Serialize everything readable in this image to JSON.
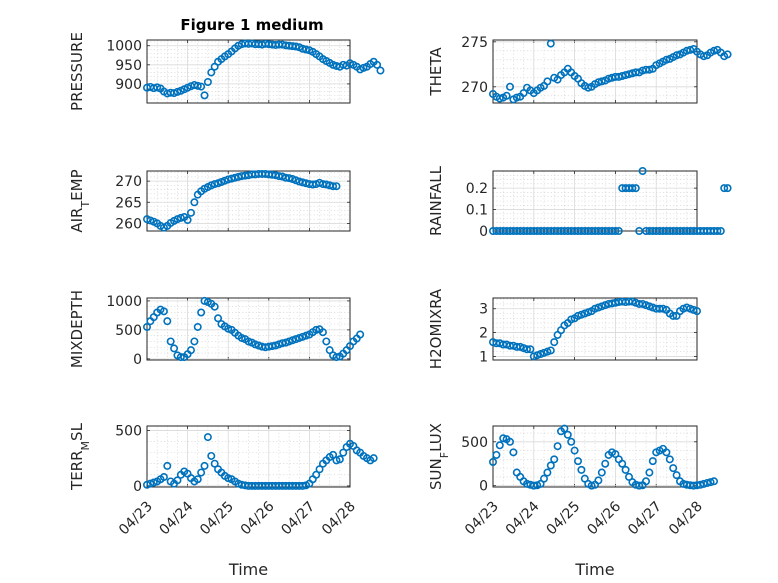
{
  "figure": {
    "title": "Figure 1 medium",
    "marker_color": "#0072BD"
  },
  "chart_data": [
    {
      "type": "scatter",
      "ylabel": "PRESSURE",
      "xlabel": "",
      "xlim": [
        "04/23",
        "04/28"
      ],
      "ylim": [
        850,
        1015
      ],
      "yticks": [
        900,
        950,
        1000
      ],
      "xticks": [
        "04/23",
        "04/24",
        "04/25",
        "04/26",
        "04/27",
        "04/28"
      ],
      "x_start": "04/23 00:00",
      "x_step_hours": 2,
      "values": [
        890,
        892,
        889,
        891,
        888,
        880,
        875,
        877,
        876,
        879,
        882,
        886,
        890,
        894,
        897,
        895,
        893,
        870,
        905,
        930,
        945,
        958,
        965,
        972,
        978,
        985,
        993,
        1000,
        1004,
        1006,
        1005,
        1006,
        1004,
        1004,
        1003,
        1005,
        1004,
        1003,
        1002,
        1003,
        1003,
        1001,
        1000,
        999,
        998,
        996,
        992,
        990,
        988,
        984,
        978,
        972,
        965,
        960,
        955,
        950,
        947,
        945,
        950,
        948,
        954,
        950,
        945,
        938,
        942,
        945,
        952,
        958,
        950,
        935
      ]
    },
    {
      "type": "scatter",
      "ylabel": "THETA",
      "xlabel": "",
      "xlim": [
        "04/23",
        "04/28"
      ],
      "ylim": [
        268.2,
        275.2
      ],
      "yticks": [
        270,
        275
      ],
      "xticks": [
        "04/23",
        "04/24",
        "04/25",
        "04/26",
        "04/27",
        "04/28"
      ],
      "x_start": "04/23 00:00",
      "x_step_hours": 2,
      "values": [
        269.2,
        268.9,
        268.7,
        268.8,
        269.0,
        270.0,
        268.6,
        268.8,
        268.9,
        269.3,
        269.9,
        269.6,
        269.3,
        269.6,
        269.9,
        270.1,
        270.6,
        274.8,
        271.0,
        270.8,
        271.3,
        271.6,
        272.0,
        271.6,
        271.2,
        270.9,
        270.4,
        270.1,
        269.9,
        270.0,
        270.3,
        270.5,
        270.6,
        270.7,
        270.9,
        271.0,
        271.1,
        271.1,
        271.2,
        271.3,
        271.4,
        271.5,
        271.6,
        271.6,
        271.8,
        271.9,
        271.9,
        272.0,
        272.4,
        272.6,
        272.8,
        273.0,
        273.1,
        273.3,
        273.5,
        273.6,
        273.8,
        274.0,
        274.1,
        274.2,
        273.9,
        273.6,
        273.4,
        273.5,
        273.8,
        274.0,
        274.1,
        273.8,
        273.4,
        273.6
      ]
    },
    {
      "type": "scatter",
      "ylabel": "AIR_TEMP",
      "xlabel": "",
      "xlim": [
        "04/23",
        "04/28"
      ],
      "ylim": [
        258.2,
        272.4
      ],
      "yticks": [
        260,
        265,
        270
      ],
      "xticks": [
        "04/23",
        "04/24",
        "04/25",
        "04/26",
        "04/27",
        "04/28"
      ],
      "x_start": "04/23 00:00",
      "x_step_hours": 2,
      "values": [
        261.0,
        260.7,
        260.4,
        260.0,
        259.4,
        259.0,
        259.4,
        260.1,
        260.6,
        261.0,
        261.3,
        261.5,
        260.8,
        262.5,
        265.0,
        266.8,
        267.6,
        268.2,
        268.6,
        269.0,
        269.3,
        269.5,
        269.8,
        270.1,
        270.4,
        270.6,
        270.8,
        271.0,
        271.2,
        271.3,
        271.4,
        271.6,
        271.6,
        271.7,
        271.7,
        271.7,
        271.6,
        271.5,
        271.4,
        271.2,
        271.1,
        270.8,
        270.7,
        270.5,
        270.2,
        269.9,
        269.7,
        269.5,
        269.3,
        269.2,
        269.3,
        269.6,
        269.3,
        269.2,
        269.0,
        268.8,
        268.8
      ]
    },
    {
      "type": "scatter",
      "ylabel": "RAINFALL",
      "xlabel": "",
      "xlim": [
        "04/23",
        "04/28"
      ],
      "ylim": [
        0,
        0.28
      ],
      "yticks": [
        0,
        0.1,
        0.2
      ],
      "xticks": [
        "04/23",
        "04/24",
        "04/25",
        "04/26",
        "04/27",
        "04/28"
      ],
      "x_start": "04/23 00:00",
      "x_step_hours": 2,
      "values": [
        0,
        0,
        0,
        0,
        0,
        0,
        0,
        0,
        0,
        0,
        0,
        0,
        0,
        0,
        0,
        0,
        0,
        0,
        0,
        0,
        0,
        0,
        0,
        0,
        0,
        0,
        0,
        0,
        0,
        0,
        0,
        0,
        0,
        0,
        0,
        0,
        0,
        0,
        0.2,
        0.2,
        0.2,
        0.2,
        0.2,
        0,
        0.28,
        0,
        0,
        0,
        0,
        0,
        0,
        0,
        0,
        0,
        0,
        0,
        0,
        0,
        0,
        0,
        0,
        0,
        0,
        0,
        0,
        0,
        0,
        0,
        0.2,
        0.2
      ]
    },
    {
      "type": "scatter",
      "ylabel": "MIXDEPTH",
      "xlabel": "",
      "xlim": [
        "04/23",
        "04/28"
      ],
      "ylim": [
        -20,
        1050
      ],
      "yticks": [
        0,
        500,
        1000
      ],
      "xticks": [
        "04/23",
        "04/24",
        "04/25",
        "04/26",
        "04/27",
        "04/28"
      ],
      "x_start": "04/23 00:00",
      "x_step_hours": 2,
      "values": [
        550,
        650,
        720,
        800,
        850,
        820,
        650,
        300,
        180,
        60,
        30,
        30,
        80,
        150,
        300,
        550,
        800,
        1000,
        980,
        950,
        900,
        700,
        600,
        560,
        520,
        500,
        450,
        400,
        360,
        340,
        300,
        280,
        250,
        230,
        210,
        200,
        210,
        220,
        230,
        250,
        270,
        280,
        300,
        320,
        340,
        360,
        380,
        400,
        420,
        460,
        500,
        510,
        460,
        300,
        150,
        60,
        30,
        40,
        90,
        150,
        220,
        300,
        350,
        420
      ]
    },
    {
      "type": "scatter",
      "ylabel": "H2OMIXRA",
      "xlabel": "",
      "xlim": [
        "04/23",
        "04/28"
      ],
      "ylim": [
        0.85,
        3.45
      ],
      "yticks": [
        1,
        2,
        3
      ],
      "xticks": [
        "04/23",
        "04/24",
        "04/25",
        "04/26",
        "04/27",
        "04/28"
      ],
      "x_start": "04/23 00:00",
      "x_step_hours": 2,
      "values": [
        1.6,
        1.55,
        1.55,
        1.5,
        1.5,
        1.45,
        1.45,
        1.4,
        1.4,
        1.35,
        1.3,
        1.3,
        1.0,
        1.05,
        1.1,
        1.15,
        1.2,
        1.25,
        1.6,
        1.9,
        2.1,
        2.3,
        2.4,
        2.55,
        2.6,
        2.7,
        2.75,
        2.8,
        2.85,
        2.9,
        3.0,
        3.05,
        3.1,
        3.15,
        3.2,
        3.22,
        3.25,
        3.28,
        3.3,
        3.28,
        3.3,
        3.3,
        3.25,
        3.2,
        3.2,
        3.15,
        3.1,
        3.05,
        3.0,
        3.0,
        3.0,
        2.95,
        2.8,
        2.7,
        2.7,
        2.9,
        3.0,
        3.05,
        3.0,
        2.95,
        2.9
      ]
    },
    {
      "type": "scatter",
      "ylabel": "TERR_MSL",
      "xlabel": "Time",
      "xlim": [
        "04/23",
        "04/28"
      ],
      "ylim": [
        -10,
        540
      ],
      "yticks": [
        0,
        500
      ],
      "xticks": [
        "04/23",
        "04/24",
        "04/25",
        "04/26",
        "04/27",
        "04/28"
      ],
      "x_start": "04/23 00:00",
      "x_step_hours": 2,
      "values": [
        10,
        20,
        30,
        40,
        60,
        80,
        180,
        40,
        20,
        50,
        100,
        130,
        110,
        70,
        40,
        60,
        120,
        180,
        440,
        270,
        200,
        150,
        120,
        90,
        70,
        60,
        40,
        20,
        10,
        5,
        0,
        0,
        0,
        0,
        0,
        0,
        0,
        0,
        0,
        0,
        0,
        0,
        0,
        0,
        0,
        0,
        0,
        5,
        20,
        60,
        100,
        150,
        200,
        230,
        260,
        280,
        230,
        240,
        300,
        350,
        380,
        360,
        320,
        300,
        270,
        250,
        230,
        250
      ]
    },
    {
      "type": "scatter",
      "ylabel": "SUN_FLUX",
      "xlabel": "Time",
      "xlim": [
        "04/23",
        "04/28"
      ],
      "ylim": [
        -15,
        680
      ],
      "yticks": [
        0,
        500
      ],
      "xticks": [
        "04/23",
        "04/24",
        "04/25",
        "04/26",
        "04/27",
        "04/28"
      ],
      "x_start": "04/23 00:00",
      "x_step_hours": 2,
      "values": [
        270,
        350,
        460,
        540,
        530,
        500,
        380,
        150,
        100,
        50,
        20,
        10,
        0,
        5,
        20,
        80,
        150,
        230,
        300,
        450,
        620,
        650,
        580,
        500,
        400,
        280,
        180,
        80,
        20,
        0,
        10,
        60,
        150,
        250,
        350,
        380,
        360,
        300,
        250,
        180,
        100,
        40,
        10,
        0,
        5,
        50,
        150,
        280,
        380,
        400,
        420,
        380,
        300,
        200,
        120,
        50,
        20,
        10,
        5,
        0,
        5,
        10,
        20,
        30,
        40,
        50
      ]
    }
  ]
}
